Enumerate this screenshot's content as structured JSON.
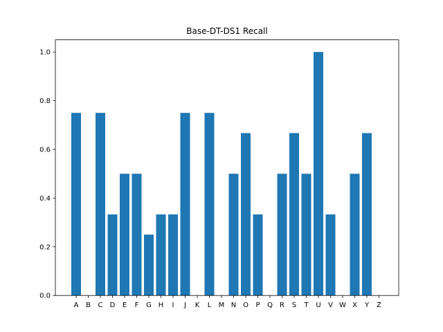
{
  "chart_data": {
    "type": "bar",
    "title": "Base-DT-DS1 Recall",
    "xlabel": "",
    "ylabel": "",
    "categories": [
      "A",
      "B",
      "C",
      "D",
      "E",
      "F",
      "G",
      "H",
      "I",
      "J",
      "K",
      "L",
      "M",
      "N",
      "O",
      "P",
      "Q",
      "R",
      "S",
      "T",
      "U",
      "V",
      "W",
      "X",
      "Y",
      "Z"
    ],
    "values": [
      0.75,
      0,
      0.75,
      0.333,
      0.5,
      0.5,
      0.25,
      0.333,
      0.333,
      0.75,
      0,
      0.75,
      0,
      0.5,
      0.667,
      0.333,
      0,
      0.5,
      0.667,
      0.5,
      1.0,
      0.333,
      0,
      0.5,
      0.667,
      0
    ],
    "ylim": [
      0,
      1.05
    ],
    "yticks": [
      0.0,
      0.2,
      0.4,
      0.6,
      0.8,
      1.0
    ],
    "ytick_labels": [
      "0.0",
      "0.2",
      "0.4",
      "0.6",
      "0.8",
      "1.0"
    ],
    "grid": false,
    "bar_color": "#1f77b4"
  }
}
